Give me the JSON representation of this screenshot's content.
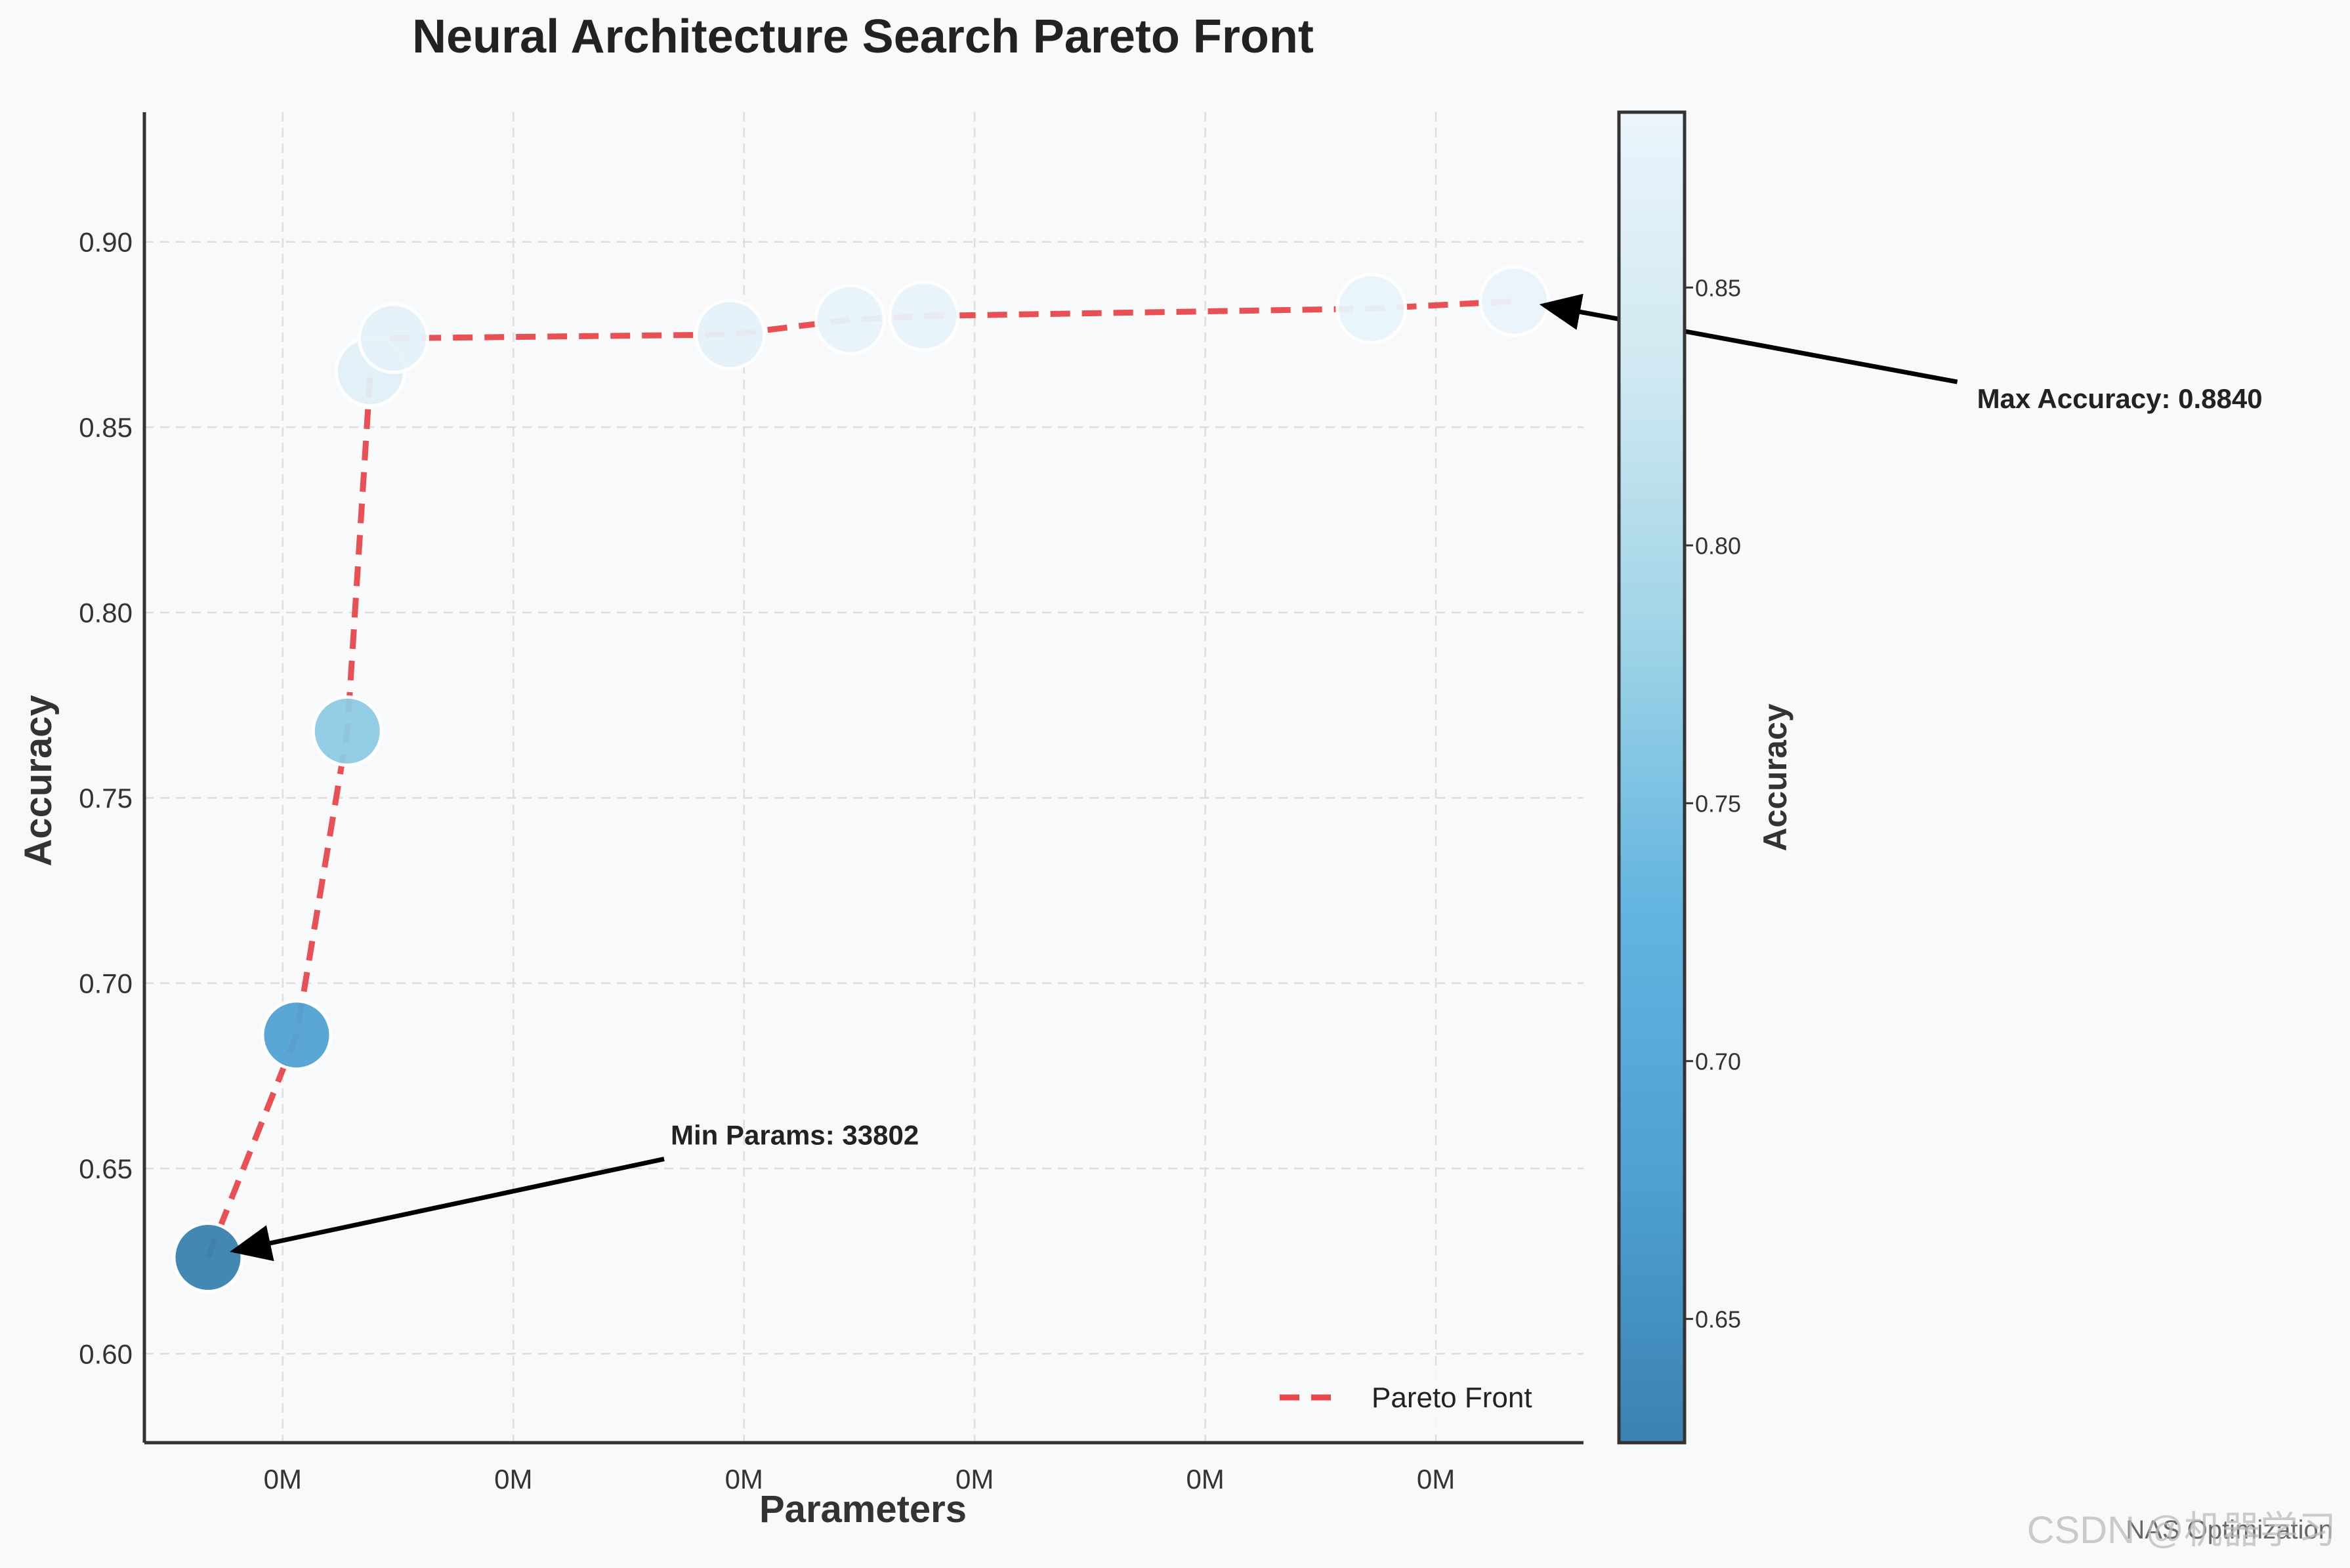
{
  "chart_data": {
    "type": "scatter",
    "title": "Neural Architecture Search Pareto Front",
    "xlabel": "Parameters",
    "ylabel": "Accuracy",
    "x_tick_labels": [
      "0M",
      "0M",
      "0M",
      "0M",
      "0M",
      "0M"
    ],
    "x_tick_values": [
      50000,
      100000,
      150000,
      200000,
      250000,
      300000
    ],
    "xlim": [
      20000,
      332000
    ],
    "y_ticks": [
      0.6,
      0.65,
      0.7,
      0.75,
      0.8,
      0.85,
      0.9
    ],
    "ylim": [
      0.576,
      0.935
    ],
    "grid": true,
    "grid_style": "dashed",
    "series": [
      {
        "name": "",
        "kind": "scatter",
        "color_by": "accuracy",
        "points": [
          {
            "x": 33802,
            "y": 0.626
          },
          {
            "x": 53000,
            "y": 0.686
          },
          {
            "x": 64000,
            "y": 0.768
          },
          {
            "x": 69000,
            "y": 0.865
          },
          {
            "x": 74000,
            "y": 0.874
          },
          {
            "x": 147000,
            "y": 0.875
          },
          {
            "x": 173000,
            "y": 0.879
          },
          {
            "x": 189000,
            "y": 0.88
          },
          {
            "x": 286000,
            "y": 0.882
          },
          {
            "x": 317000,
            "y": 0.884
          }
        ]
      },
      {
        "name": "Pareto Front",
        "kind": "line",
        "style": "dashed",
        "color": "#e8474a",
        "points": [
          {
            "x": 33802,
            "y": 0.626
          },
          {
            "x": 53000,
            "y": 0.686
          },
          {
            "x": 64000,
            "y": 0.768
          },
          {
            "x": 69000,
            "y": 0.865
          },
          {
            "x": 74000,
            "y": 0.874
          },
          {
            "x": 147000,
            "y": 0.875
          },
          {
            "x": 173000,
            "y": 0.879
          },
          {
            "x": 189000,
            "y": 0.88
          },
          {
            "x": 286000,
            "y": 0.882
          },
          {
            "x": 317000,
            "y": 0.884
          }
        ]
      }
    ],
    "legend": {
      "position": "lower-right",
      "entries": [
        "Pareto Front"
      ]
    },
    "colorbar": {
      "label": "Accuracy",
      "range": [
        0.626,
        0.884
      ],
      "ticks": [
        0.65,
        0.7,
        0.75,
        0.8,
        0.85
      ],
      "colors": [
        "#3a82b0",
        "#4fa0d3",
        "#63b4e0",
        "#9dd3e6",
        "#cfe8f1",
        "#ebf4fb"
      ]
    },
    "annotations": [
      {
        "text": "Min Params: 33802",
        "target": {
          "x": 33802,
          "y": 0.626
        },
        "label_pos": "upper-right"
      },
      {
        "text": "Max Accuracy: 0.8840",
        "target": {
          "x": 317000,
          "y": 0.884
        },
        "label_pos": "lower-right"
      }
    ]
  },
  "footer": {
    "caption": "NAS Optimization",
    "watermark": "CSDN @机器学习"
  },
  "colors": {
    "background": "#f8f9fb",
    "pareto_line": "#e8474a",
    "grid": "#dddddd",
    "axis": "#333333"
  }
}
